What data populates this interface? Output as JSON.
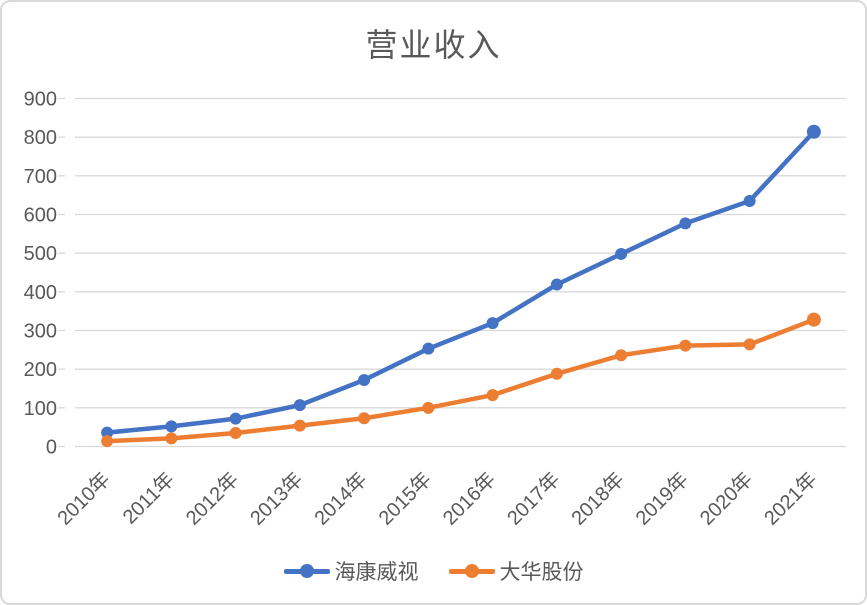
{
  "chart": {
    "title": "营业收入",
    "colors": {
      "text": "#595959",
      "gridline": "#d9d9d9",
      "axis_line": "#d9d9d9",
      "border": "#d9d9d9",
      "background": "#ffffff",
      "series_blue": "#4472C4",
      "series_orange": "#ED7D31"
    }
  },
  "chart_data": {
    "type": "line",
    "title": "营业收入",
    "categories": [
      "2010年",
      "2011年",
      "2012年",
      "2013年",
      "2014年",
      "2015年",
      "2016年",
      "2017年",
      "2018年",
      "2019年",
      "2020年",
      "2021年"
    ],
    "series": [
      {
        "name": "海康威视",
        "color": "#4472C4",
        "values": [
          36,
          52,
          72,
          107,
          172,
          253,
          319,
          419,
          498,
          577,
          635,
          814
        ]
      },
      {
        "name": "大华股份",
        "color": "#ED7D31",
        "values": [
          14,
          21,
          35,
          54,
          73,
          100,
          133,
          188,
          236,
          261,
          264,
          328
        ]
      }
    ],
    "xlabel": "",
    "ylabel": "",
    "ylim": [
      0,
      900
    ],
    "yticks": [
      0,
      100,
      200,
      300,
      400,
      500,
      600,
      700,
      800,
      900
    ],
    "grid": true,
    "x_label_rotation": -45,
    "legend_position": "bottom",
    "markers": "circle"
  }
}
